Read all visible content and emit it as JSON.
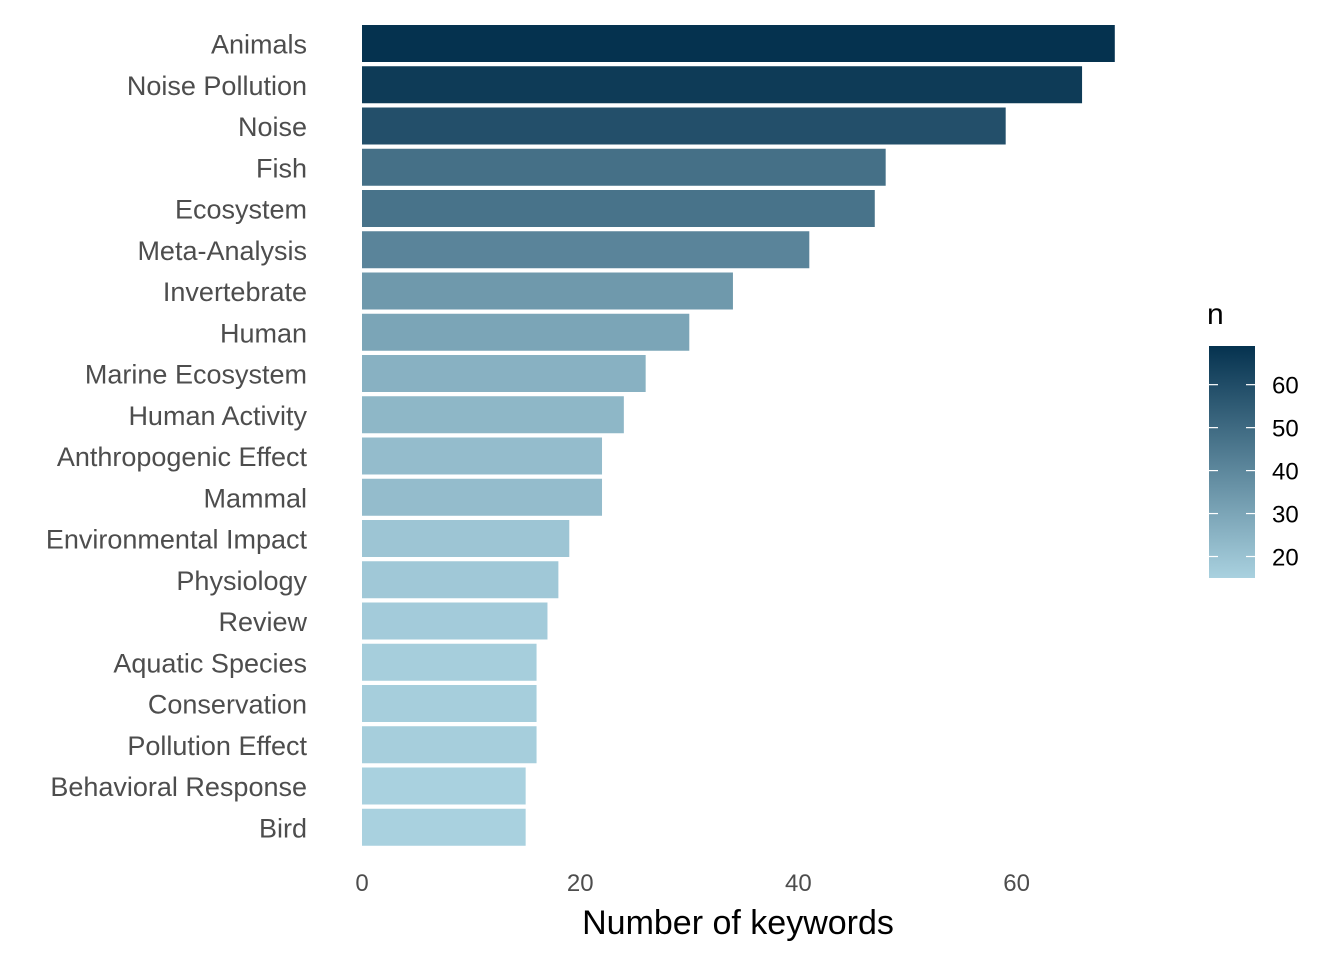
{
  "chart_data": {
    "type": "bar",
    "orientation": "horizontal",
    "categories": [
      "Animals",
      "Noise Pollution",
      "Noise",
      "Fish",
      "Ecosystem",
      "Meta-Analysis",
      "Invertebrate",
      "Human",
      "Marine Ecosystem",
      "Human Activity",
      "Anthropogenic Effect",
      "Mammal",
      "Environmental Impact",
      "Physiology",
      "Review",
      "Aquatic Species",
      "Conservation",
      "Pollution Effect",
      "Behavioral Response",
      "Bird"
    ],
    "values": [
      69,
      66,
      59,
      48,
      47,
      41,
      34,
      30,
      26,
      24,
      22,
      22,
      19,
      18,
      17,
      16,
      16,
      16,
      15,
      15
    ],
    "xlabel": "Number of keywords",
    "ylabel": "",
    "xlim": [
      0,
      75
    ],
    "x_ticks": [
      0,
      20,
      40,
      60
    ],
    "grid": false,
    "legend": {
      "title": "n",
      "placement": "right",
      "ticks": [
        20,
        30,
        40,
        50,
        60
      ],
      "range": [
        15,
        69
      ],
      "color_low": "#a9d1df",
      "color_high": "#05324f"
    }
  }
}
